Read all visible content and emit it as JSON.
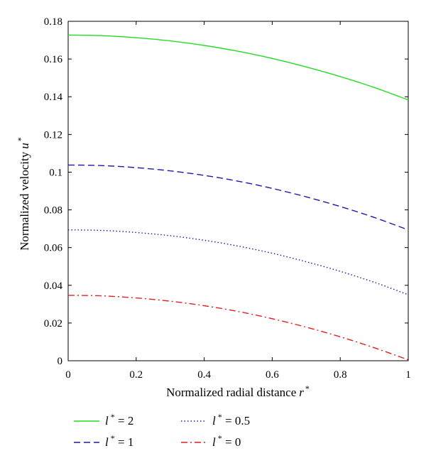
{
  "chart_data": {
    "type": "line",
    "xlabel": "Normalized radial distance",
    "xlabel_symbol": "r",
    "xlabel_sup": "*",
    "ylabel": "Normalized velocity",
    "ylabel_symbol": "u",
    "ylabel_sup": "*",
    "xlim": [
      0,
      1
    ],
    "ylim": [
      0,
      0.18
    ],
    "xticks": [
      "0",
      "0.2",
      "0.4",
      "0.6",
      "0.8",
      "1"
    ],
    "yticks": [
      "0",
      "0.02",
      "0.04",
      "0.06",
      "0.08",
      "0.1",
      "0.12",
      "0.14",
      "0.16",
      "0.18"
    ],
    "grid": false,
    "legend_position": "bottom",
    "series": [
      {
        "name": "l* = 2",
        "symbol": "l",
        "sup": "*",
        "value_text": " = 2",
        "color": "#22dd22",
        "style": "solid",
        "x": [
          0,
          0.1,
          0.2,
          0.3,
          0.4,
          0.5,
          0.6,
          0.7,
          0.8,
          0.9,
          1.0
        ],
        "y": [
          0.1727,
          0.1724,
          0.1713,
          0.1696,
          0.1672,
          0.1641,
          0.1603,
          0.1558,
          0.1507,
          0.1449,
          0.1383
        ]
      },
      {
        "name": "l* = 1",
        "symbol": "l",
        "sup": "*",
        "value_text": " = 1",
        "color": "#1a1aa8",
        "style": "dashed",
        "x": [
          0,
          0.1,
          0.2,
          0.3,
          0.4,
          0.5,
          0.6,
          0.7,
          0.8,
          0.9,
          1.0
        ],
        "y": [
          0.1038,
          0.1035,
          0.1024,
          0.1007,
          0.0983,
          0.0952,
          0.0914,
          0.0869,
          0.0818,
          0.076,
          0.0694
        ]
      },
      {
        "name": "l* = 0.5",
        "symbol": "l",
        "sup": "*",
        "value_text": " = 0.5",
        "color": "#1a1aa8",
        "style": "dotted",
        "x": [
          0,
          0.1,
          0.2,
          0.3,
          0.4,
          0.5,
          0.6,
          0.7,
          0.8,
          0.9,
          1.0
        ],
        "y": [
          0.0694,
          0.0691,
          0.068,
          0.0663,
          0.0639,
          0.0608,
          0.057,
          0.0525,
          0.0474,
          0.0416,
          0.035
        ]
      },
      {
        "name": "l* = 0",
        "symbol": "l",
        "sup": "*",
        "value_text": " = 0",
        "color": "#dd2222",
        "style": "dashdot",
        "x": [
          0,
          0.1,
          0.2,
          0.3,
          0.4,
          0.5,
          0.6,
          0.7,
          0.8,
          0.9,
          1.0
        ],
        "y": [
          0.0347,
          0.0344,
          0.0333,
          0.0316,
          0.0292,
          0.0261,
          0.0223,
          0.0178,
          0.0127,
          0.0069,
          0.0005
        ]
      }
    ]
  }
}
